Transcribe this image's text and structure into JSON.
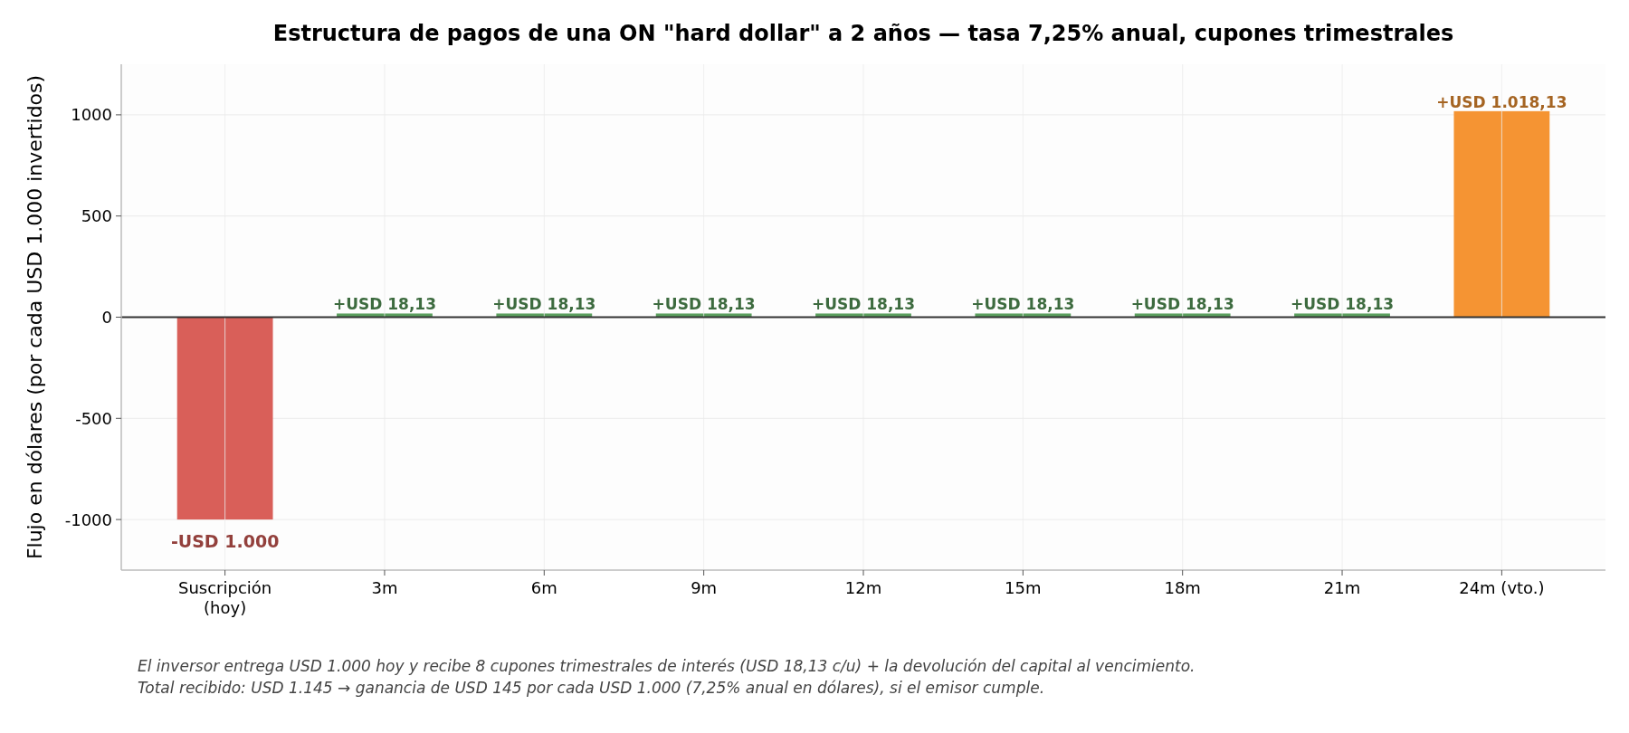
{
  "chart_data": {
    "type": "bar",
    "title": "Estructura de pagos de una ON \"hard dollar\" a 2 años — tasa 7,25% anual, cupones trimestrales",
    "ylabel": "Flujo en dólares (por cada USD 1.000 invertidos)",
    "categories": [
      "Suscripción\n(hoy)",
      "3m",
      "6m",
      "9m",
      "12m",
      "15m",
      "18m",
      "21m",
      "24m (vto.)"
    ],
    "values": [
      -1000,
      18.13,
      18.13,
      18.13,
      18.13,
      18.13,
      18.13,
      18.13,
      1018.13
    ],
    "colors": [
      "#d95f59",
      "#5b9f5e",
      "#5b9f5e",
      "#5b9f5e",
      "#5b9f5e",
      "#5b9f5e",
      "#5b9f5e",
      "#5b9f5e",
      "#f59433"
    ],
    "value_labels": [
      "-USD 1.000",
      "+USD 18,13",
      "+USD 18,13",
      "+USD 18,13",
      "+USD 18,13",
      "+USD 18,13",
      "+USD 18,13",
      "+USD 18,13",
      "+USD 1.018,13"
    ],
    "ylim": [
      -1250,
      1250
    ],
    "yticks": [
      -1000,
      -500,
      0,
      500,
      1000
    ],
    "grid": true,
    "ref_lines": [
      {
        "axis": "y",
        "value": 0,
        "color": "#333333"
      }
    ],
    "annotations": [
      "El inversor entrega USD 1.000 hoy y recibe 8 cupones trimestrales de interés (USD 18,13 c/u) + la devolución del capital al vencimiento.",
      "Total recibido: USD 1.145 → ganancia de USD 145 por cada USD 1.000 (7,25% anual en dólares), si el emisor cumple."
    ]
  }
}
